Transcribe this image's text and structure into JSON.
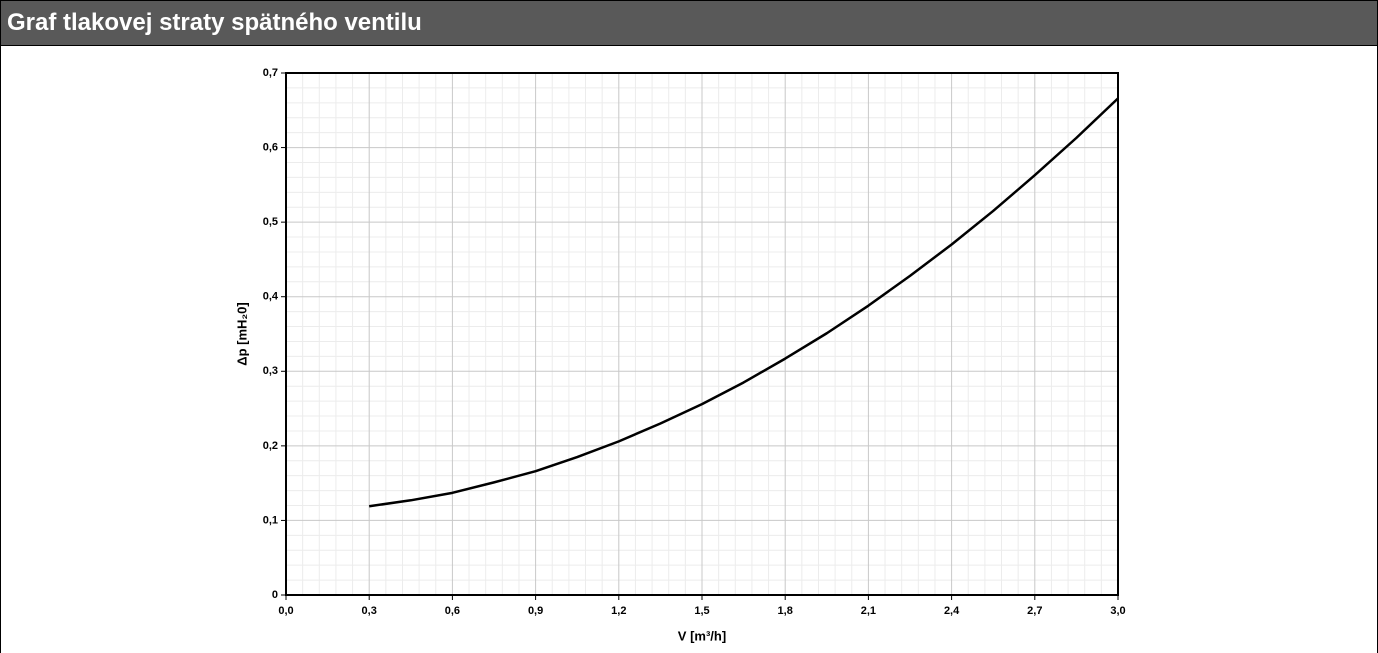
{
  "header": {
    "title": "Graf tlakovej straty spätného ventilu"
  },
  "chart_data": {
    "type": "line",
    "xlabel": "V [m³/h]",
    "ylabel": "Δp [mH₂0]",
    "x": [
      0.3,
      0.45,
      0.6,
      0.75,
      0.9,
      1.05,
      1.2,
      1.35,
      1.5,
      1.65,
      1.8,
      1.95,
      2.1,
      2.25,
      2.4,
      2.55,
      2.7,
      2.85,
      3.0
    ],
    "series": [
      {
        "color": "#000000",
        "values": [
          0.119,
          0.127,
          0.137,
          0.151,
          0.166,
          0.185,
          0.206,
          0.23,
          0.256,
          0.285,
          0.317,
          0.351,
          0.388,
          0.428,
          0.47,
          0.515,
          0.563,
          0.613,
          0.666
        ]
      }
    ],
    "xlim": [
      0,
      3.0
    ],
    "xticks": [
      {
        "value": 0,
        "label": "0,0"
      },
      {
        "value": 0.3,
        "label": "0,3"
      },
      {
        "value": 0.6,
        "label": "0,6"
      },
      {
        "value": 0.9,
        "label": "0,9"
      },
      {
        "value": 1.2,
        "label": "1,2"
      },
      {
        "value": 1.5,
        "label": "1,5"
      },
      {
        "value": 1.8,
        "label": "1,8"
      },
      {
        "value": 2.1,
        "label": "2,1"
      },
      {
        "value": 2.4,
        "label": "2,4"
      },
      {
        "value": 2.7,
        "label": "2,7"
      },
      {
        "value": 3.0,
        "label": "3,0"
      }
    ],
    "ylim": [
      0,
      0.7
    ],
    "yticks": [
      0,
      {
        "value": 0.1,
        "label": "0,1"
      },
      {
        "value": 0.2,
        "label": "0,2"
      },
      {
        "value": 0.3,
        "label": "0,3"
      },
      {
        "value": 0.4,
        "label": "0,4"
      },
      {
        "value": 0.5,
        "label": "0,5"
      },
      {
        "value": 0.6,
        "label": "0,6"
      },
      {
        "value": 0.7,
        "label": "0,7"
      }
    ],
    "grid": true
  }
}
